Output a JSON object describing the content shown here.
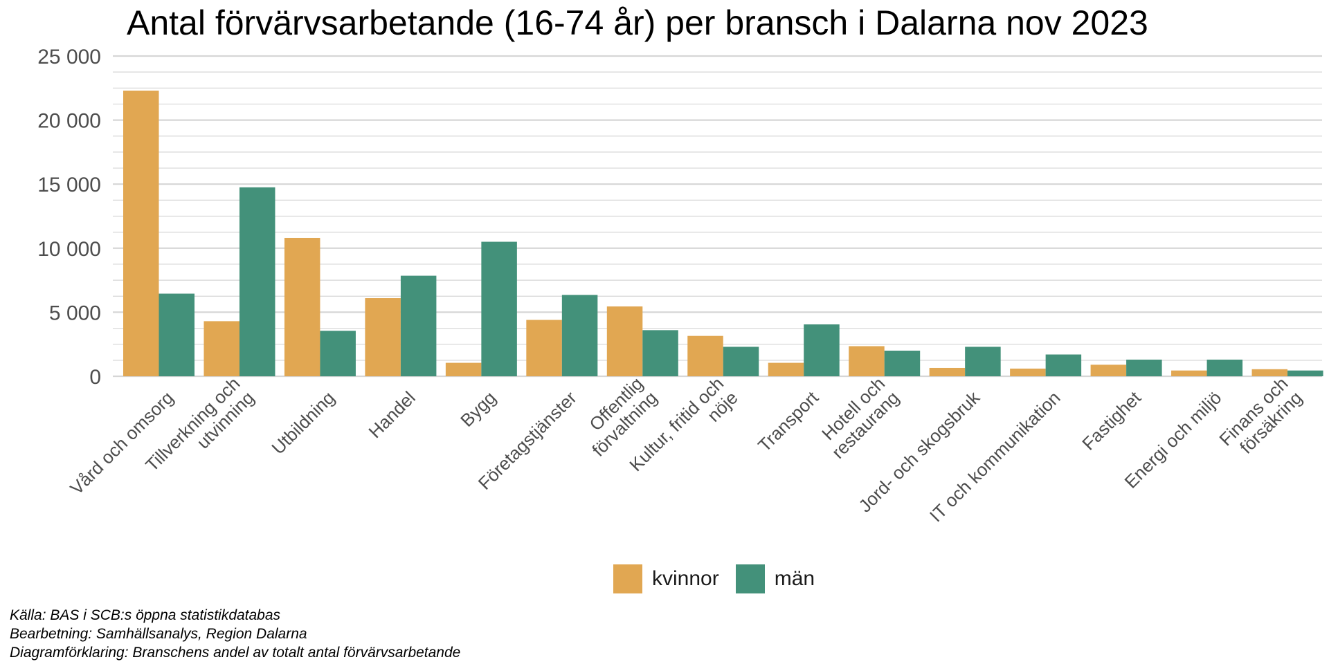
{
  "chart_data": {
    "type": "bar",
    "title": "Antal förvärvsarbetande (16-74 år) per bransch i Dalarna nov 2023",
    "xlabel": "",
    "ylabel": "",
    "ylim": [
      0,
      25000
    ],
    "yticks": [
      0,
      5000,
      10000,
      15000,
      20000,
      25000
    ],
    "ytick_labels": [
      "0",
      "5 000",
      "10 000",
      "15 000",
      "20 000",
      "25 000"
    ],
    "grid": true,
    "legend_position": "bottom",
    "categories": [
      "Vård och omsorg",
      "Tillverkning och utvinning",
      "Utbildning",
      "Handel",
      "Bygg",
      "Företagstjänster",
      "Offentlig förvaltning",
      "Kultur, fritid och nöje",
      "Transport",
      "Hotell och restaurang",
      "Jord- och skogsbruk",
      "IT och kommunikation",
      "Fastighet",
      "Energi och miljö",
      "Finans och försäkring"
    ],
    "series": [
      {
        "name": "kvinnor",
        "color": "#E1A752",
        "values": [
          22300,
          4300,
          10800,
          6100,
          1050,
          4400,
          5450,
          3150,
          1050,
          2350,
          650,
          600,
          900,
          450,
          550
        ]
      },
      {
        "name": "män",
        "color": "#43917A",
        "values": [
          6450,
          14750,
          3550,
          7850,
          10500,
          6350,
          3600,
          2300,
          4050,
          2000,
          2300,
          1700,
          1300,
          1300,
          450
        ]
      }
    ],
    "colors": {
      "grid": "#d6d6d6",
      "tick_text": "#4d4d4d"
    }
  },
  "caption": {
    "line1": "Källa: BAS i SCB:s öppna statistikdatabas",
    "line2": "Bearbetning: Samhällsanalys, Region Dalarna",
    "line3": "Diagramförklaring: Branschens andel av totalt antal förvärvsarbetande"
  }
}
